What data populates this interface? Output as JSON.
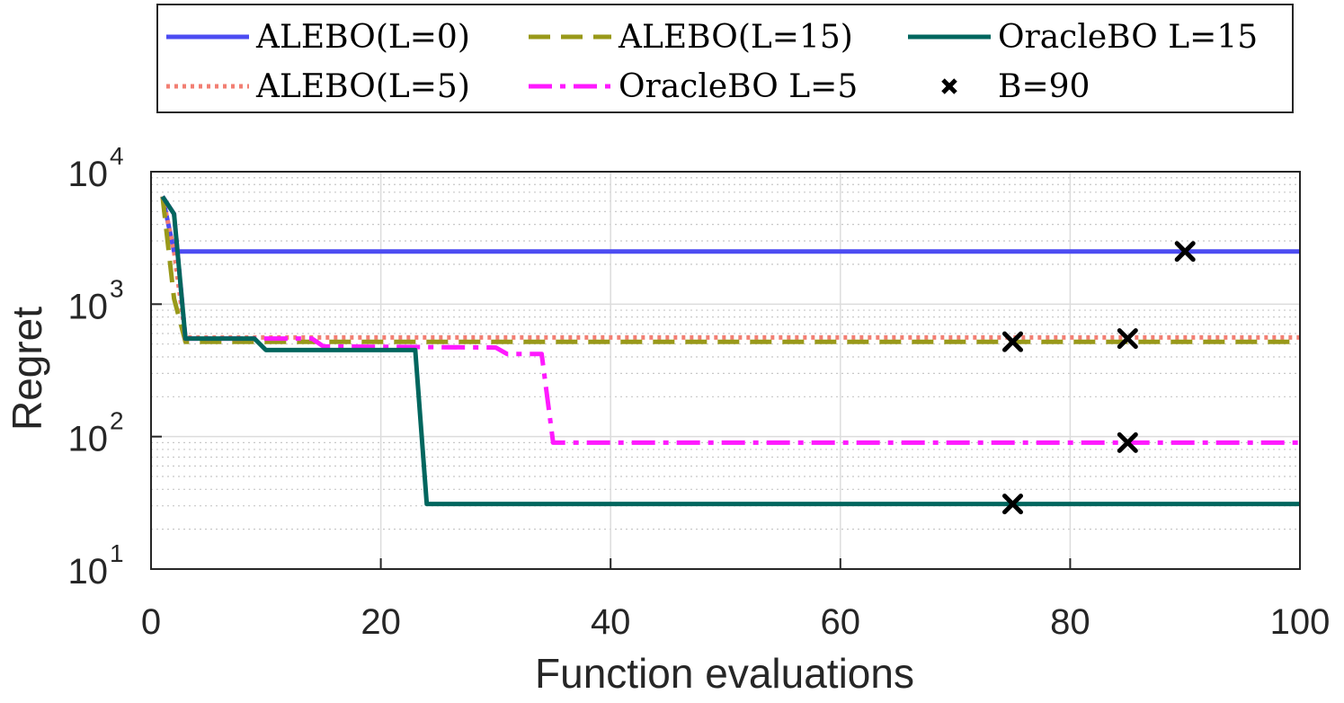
{
  "chart_data": {
    "type": "line",
    "xlabel": "Function evaluations",
    "ylabel": "Regret",
    "xlim": [
      0,
      100
    ],
    "ylim": [
      10,
      10000
    ],
    "yscale": "log",
    "xticks": [
      {
        "value": 0,
        "label": "0"
      },
      {
        "value": 20,
        "label": "20"
      },
      {
        "value": 40,
        "label": "40"
      },
      {
        "value": 60,
        "label": "60"
      },
      {
        "value": 80,
        "label": "80"
      },
      {
        "value": 100,
        "label": "100"
      }
    ],
    "yticks": [
      {
        "value": 10,
        "base": "10",
        "exp": "1"
      },
      {
        "value": 100,
        "base": "10",
        "exp": "2"
      },
      {
        "value": 1000,
        "base": "10",
        "exp": "3"
      },
      {
        "value": 10000,
        "base": "10",
        "exp": "4"
      }
    ],
    "grid": true,
    "legend_position": "top, outside",
    "series": [
      {
        "name": "ALEBO(L=0)",
        "color": "#4c4cf2",
        "style": "solid",
        "x": [
          1,
          2,
          3,
          100
        ],
        "y": [
          6500,
          2500,
          2500,
          2500
        ]
      },
      {
        "name": "ALEBO(L=5)",
        "color": "#f27f73",
        "style": "dotted",
        "x": [
          1,
          2,
          3,
          100
        ],
        "y": [
          6500,
          2500,
          560,
          560
        ]
      },
      {
        "name": "ALEBO(L=15)",
        "color": "#999919",
        "style": "dashed",
        "x": [
          1,
          2,
          3,
          100
        ],
        "y": [
          6500,
          1100,
          520,
          520
        ]
      },
      {
        "name": "OracleBO L=5",
        "color": "#ff19ff",
        "style": "dashdot",
        "x": [
          1,
          2,
          3,
          9,
          10,
          14,
          15,
          30,
          31,
          34,
          35,
          100
        ],
        "y": [
          6500,
          4800,
          550,
          550,
          550,
          550,
          480,
          470,
          420,
          420,
          90,
          90
        ]
      },
      {
        "name": "OracleBO L=15",
        "color": "#00665e",
        "style": "solid",
        "x": [
          1,
          2,
          3,
          9,
          10,
          23,
          24,
          100
        ],
        "y": [
          6500,
          4800,
          550,
          550,
          450,
          450,
          31,
          31
        ]
      }
    ],
    "markers": {
      "name": "B=90",
      "symbol": "x",
      "color": "#000000",
      "points": [
        {
          "x": 90,
          "y": 2500
        },
        {
          "x": 85,
          "y": 550
        },
        {
          "x": 75,
          "y": 520
        },
        {
          "x": 85,
          "y": 90
        },
        {
          "x": 75,
          "y": 31
        }
      ]
    }
  }
}
